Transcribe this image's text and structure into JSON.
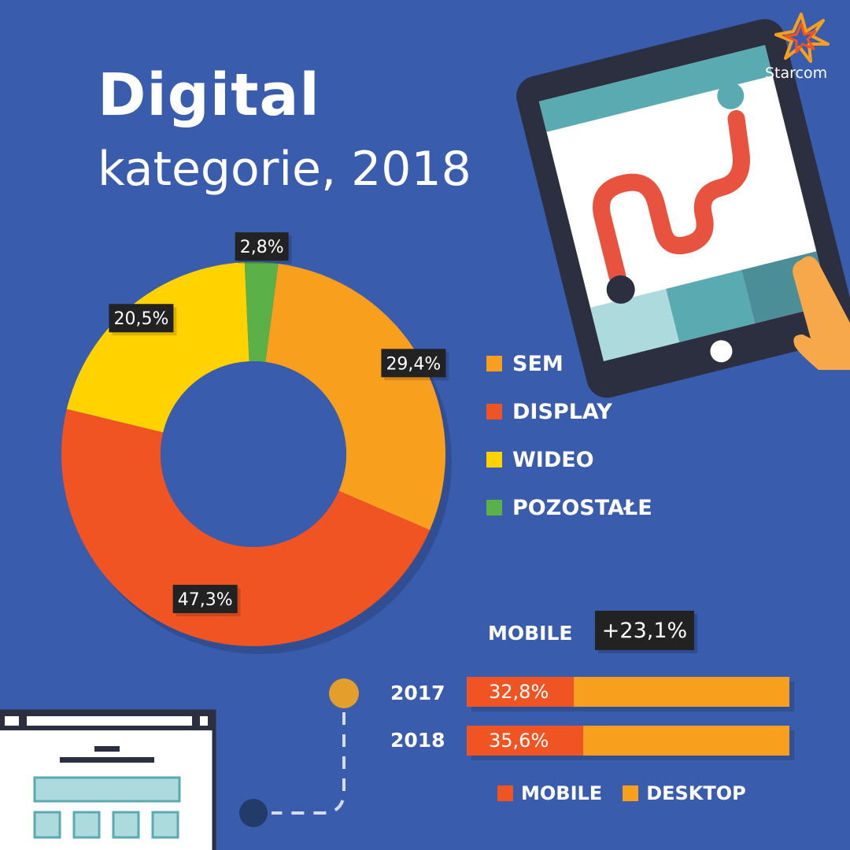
{
  "title": "Digital",
  "subtitle": "kategorie, 2018",
  "brand": "Starcom",
  "colors": {
    "background": "#3a5cad",
    "sem": "#f99f1e",
    "display": "#f05423",
    "wideo": "#ffd200",
    "pozostale": "#5bb047",
    "mobile": "#f05423",
    "desktop": "#f99f1e",
    "label_box": "#222222"
  },
  "chart_data": [
    {
      "type": "pie",
      "variant": "donut",
      "categories": [
        "SEM",
        "DISPLAY",
        "WIDEO",
        "POZOSTAŁE"
      ],
      "values": [
        29.4,
        47.3,
        20.5,
        2.8
      ],
      "labels": [
        "29,4%",
        "47,3%",
        "20,5%",
        "2,8%"
      ],
      "legend": "right"
    },
    {
      "type": "bar",
      "orientation": "horizontal",
      "stacked": true,
      "title": "MOBILE",
      "annotation": "+23,1%",
      "categories": [
        "2017",
        "2018"
      ],
      "series": [
        {
          "name": "MOBILE",
          "values": [
            32.8,
            35.6
          ],
          "labels": [
            "32,8%",
            "35,6%"
          ]
        },
        {
          "name": "DESKTOP",
          "values": [
            67.2,
            64.4
          ]
        }
      ],
      "xlim": [
        0,
        100
      ],
      "legend": "bottom"
    }
  ],
  "icons": [
    "tablet-icon",
    "starcom-logo-icon",
    "browser-window-icon",
    "hand-pointer-icon"
  ]
}
